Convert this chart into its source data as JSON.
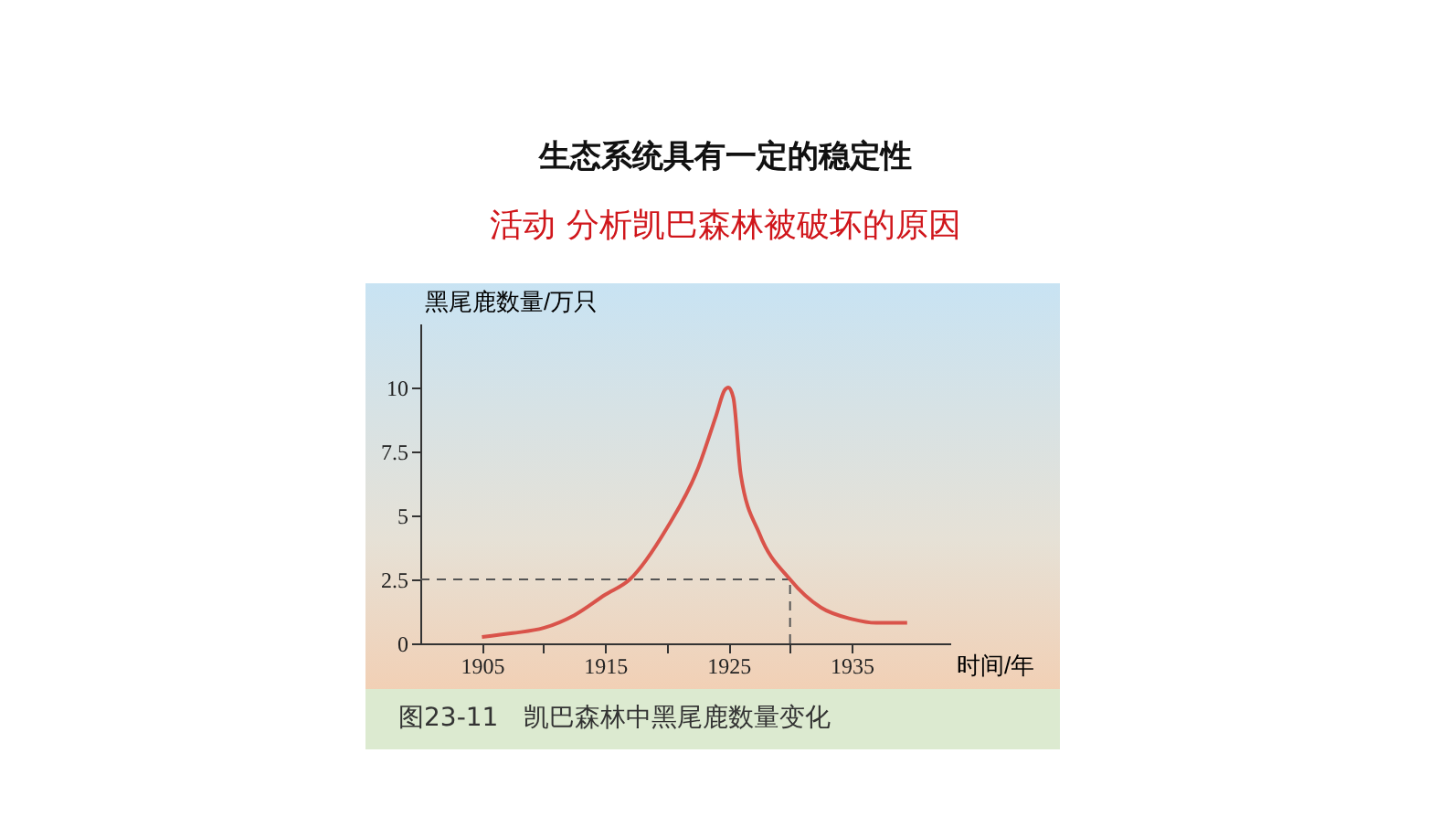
{
  "chart_data": {
    "type": "line",
    "title": "生态系统具有一定的稳定性",
    "subtitle": "活动  分析凯巴森林被破坏的原因",
    "xlabel": "时间/年",
    "ylabel": "黑尾鹿数量/万只",
    "annotations": [
      "图23-11　凯巴森林中黑尾鹿数量变化"
    ],
    "x": [
      1905,
      1907.5,
      1910,
      1912.5,
      1915,
      1917,
      1920,
      1922.5,
      1924,
      1924.7,
      1925,
      1925.4,
      1926,
      1927.5,
      1930,
      1932.5,
      1935,
      1937,
      1939.5
    ],
    "series": [
      {
        "color": "#d9534a",
        "values": [
          0.25,
          0.4,
          0.6,
          1.1,
          1.9,
          2.5,
          4.5,
          6.8,
          8.9,
          9.9,
          10,
          9.6,
          6.6,
          4.3,
          2.5,
          1.4,
          0.95,
          0.8,
          0.8
        ]
      }
    ],
    "xlim": [
      1900,
      1943
    ],
    "ylim": [
      0,
      12.5
    ],
    "xticks": [
      1905,
      {
        "value": 1910,
        "label": null
      },
      1915,
      {
        "value": 1920,
        "label": null
      },
      1925,
      {
        "value": 1930,
        "label": null
      },
      1935
    ],
    "yticks": [
      0,
      2.5,
      5,
      7.5,
      10
    ],
    "ref_lines": [
      {
        "axis": "y",
        "value": 2.5,
        "line_style": "dashed",
        "color": "#555555"
      },
      {
        "axis": "x",
        "value": 1930,
        "line_style": "dashed",
        "color": "#555555"
      }
    ],
    "marker": "none",
    "line_style": "solid"
  }
}
